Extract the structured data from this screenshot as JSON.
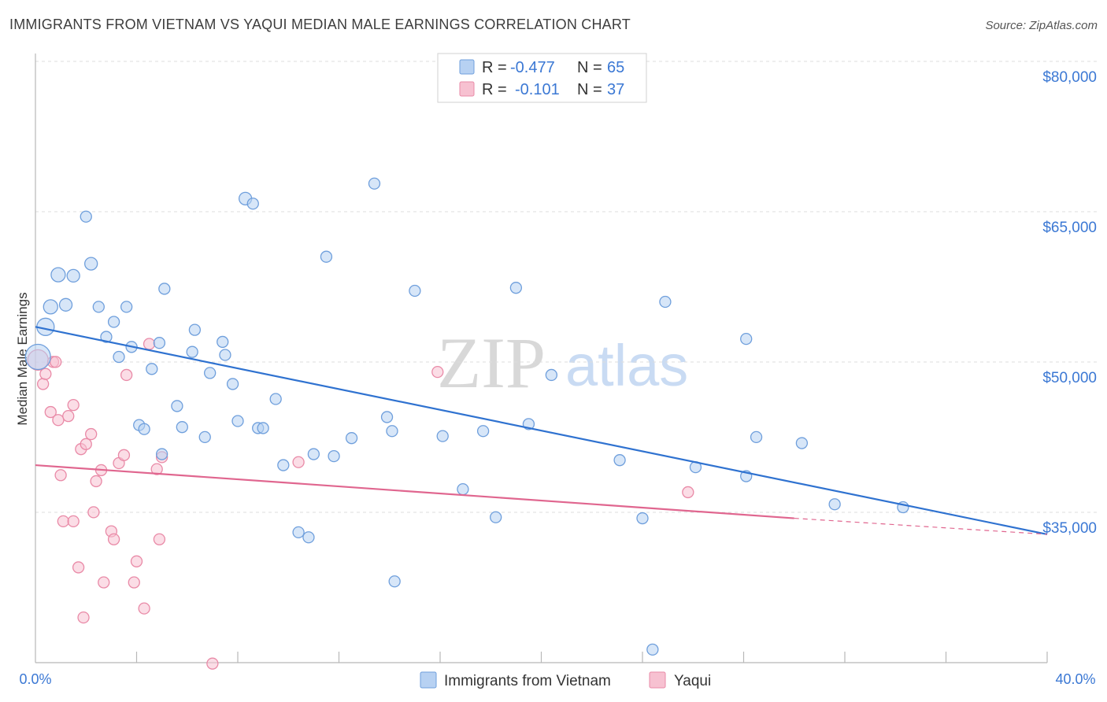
{
  "title": "IMMIGRANTS FROM VIETNAM VS YAQUI MEDIAN MALE EARNINGS CORRELATION CHART",
  "source": "Source: ZipAtlas.com",
  "watermark": {
    "zip": "ZIP",
    "atlas": "atlas"
  },
  "colors": {
    "blue_fill": "#b7d1f2",
    "blue_stroke": "#6f9fdc",
    "blue_line": "#2f72d0",
    "pink_fill": "#f7c1d1",
    "pink_stroke": "#e98aa7",
    "pink_line": "#e0668f",
    "axis_text": "#3b78d4",
    "grid": "#dddddd"
  },
  "legend": {
    "r_label": "R =",
    "n_label": "N =",
    "series1": {
      "r": "-0.477",
      "n": "65"
    },
    "series2": {
      "r": "-0.101",
      "n": "37"
    }
  },
  "chart_data": {
    "type": "scatter",
    "title": "IMMIGRANTS FROM VIETNAM VS YAQUI MEDIAN MALE EARNINGS CORRELATION CHART",
    "xlabel": "",
    "ylabel": "Median Male Earnings",
    "xlim": [
      0,
      40
    ],
    "ylim": [
      20000,
      83000
    ],
    "x_tick_labels": [
      "0.0%",
      "40.0%"
    ],
    "y_ticks": [
      35000,
      50000,
      65000,
      80000
    ],
    "y_tick_labels": [
      "$35,000",
      "$50,000",
      "$65,000",
      "$80,000"
    ],
    "legend_position": "top-center",
    "series": [
      {
        "name": "Immigrants from Vietnam",
        "color": "blue",
        "r": -0.477,
        "n": 65,
        "trend": {
          "x": [
            0,
            40
          ],
          "y": [
            55000,
            34300
          ]
        },
        "points": [
          [
            0.1,
            52000,
            16
          ],
          [
            0.4,
            55000,
            11
          ],
          [
            0.6,
            57000,
            9
          ],
          [
            0.9,
            60200,
            9
          ],
          [
            1.2,
            57200,
            8
          ],
          [
            1.5,
            60100,
            8
          ],
          [
            2.0,
            66000,
            7
          ],
          [
            2.2,
            61300,
            8
          ],
          [
            2.5,
            57000,
            7
          ],
          [
            2.8,
            54000,
            7
          ],
          [
            3.1,
            55500,
            7
          ],
          [
            3.3,
            52000,
            7
          ],
          [
            3.6,
            57000,
            7
          ],
          [
            3.8,
            53000,
            7
          ],
          [
            4.1,
            45200,
            7
          ],
          [
            4.3,
            44800,
            7
          ],
          [
            4.6,
            50800,
            7
          ],
          [
            4.9,
            53400,
            7
          ],
          [
            5.0,
            42300,
            7
          ],
          [
            5.6,
            47100,
            7
          ],
          [
            5.1,
            58800,
            7
          ],
          [
            5.8,
            45000,
            7
          ],
          [
            6.2,
            52500,
            7
          ],
          [
            6.3,
            54700,
            7
          ],
          [
            6.7,
            44000,
            7
          ],
          [
            6.9,
            50400,
            7
          ],
          [
            7.4,
            53500,
            7
          ],
          [
            7.5,
            52200,
            7
          ],
          [
            7.8,
            49300,
            7
          ],
          [
            8.0,
            45600,
            7
          ],
          [
            8.3,
            67800,
            8
          ],
          [
            8.6,
            67300,
            7
          ],
          [
            8.8,
            44900,
            7
          ],
          [
            9.0,
            44900,
            7
          ],
          [
            9.5,
            47800,
            7
          ],
          [
            9.8,
            41200,
            7
          ],
          [
            10.4,
            34500,
            7
          ],
          [
            10.8,
            34000,
            7
          ],
          [
            11.0,
            42300,
            7
          ],
          [
            11.5,
            62000,
            7
          ],
          [
            11.8,
            42100,
            7
          ],
          [
            12.5,
            43900,
            7
          ],
          [
            13.4,
            69300,
            7
          ],
          [
            13.9,
            46000,
            7
          ],
          [
            14.1,
            44600,
            7
          ],
          [
            14.2,
            29600,
            7
          ],
          [
            15.0,
            58600,
            7
          ],
          [
            16.1,
            44100,
            7
          ],
          [
            16.9,
            38800,
            7
          ],
          [
            17.7,
            44600,
            7
          ],
          [
            18.2,
            36000,
            7
          ],
          [
            19.0,
            58900,
            7
          ],
          [
            19.5,
            45300,
            7
          ],
          [
            20.4,
            50200,
            7
          ],
          [
            23.1,
            41700,
            7
          ],
          [
            24.0,
            35900,
            7
          ],
          [
            24.4,
            22800,
            7
          ],
          [
            24.9,
            57500,
            7
          ],
          [
            26.1,
            41000,
            7
          ],
          [
            28.1,
            53800,
            7
          ],
          [
            28.1,
            40100,
            7
          ],
          [
            28.5,
            44000,
            7
          ],
          [
            30.3,
            43400,
            7
          ],
          [
            31.6,
            37300,
            7
          ],
          [
            34.3,
            37000,
            7
          ]
        ]
      },
      {
        "name": "Yaqui",
        "color": "pink",
        "r": -0.101,
        "n": 37,
        "trend": {
          "x": [
            0,
            30
          ],
          "y": [
            41200,
            35900
          ],
          "dashed_to": [
            40,
            34300
          ]
        },
        "points": [
          [
            0.1,
            51700,
            13
          ],
          [
            0.3,
            49300,
            7
          ],
          [
            0.4,
            50300,
            7
          ],
          [
            0.6,
            46500,
            7
          ],
          [
            0.7,
            51500,
            7
          ],
          [
            0.8,
            51500,
            7
          ],
          [
            0.9,
            45700,
            7
          ],
          [
            1.0,
            40200,
            7
          ],
          [
            1.1,
            35600,
            7
          ],
          [
            1.3,
            46100,
            7
          ],
          [
            1.5,
            35600,
            7
          ],
          [
            1.5,
            47200,
            7
          ],
          [
            1.7,
            31000,
            7
          ],
          [
            1.8,
            42800,
            7
          ],
          [
            1.9,
            26000,
            7
          ],
          [
            2.0,
            43300,
            7
          ],
          [
            2.2,
            44300,
            7
          ],
          [
            2.3,
            36500,
            7
          ],
          [
            2.4,
            39600,
            7
          ],
          [
            2.6,
            40700,
            7
          ],
          [
            2.7,
            29500,
            7
          ],
          [
            3.0,
            34600,
            7
          ],
          [
            3.1,
            33800,
            7
          ],
          [
            3.3,
            41400,
            7
          ],
          [
            3.5,
            42200,
            7
          ],
          [
            3.6,
            50200,
            7
          ],
          [
            3.9,
            29500,
            7
          ],
          [
            4.0,
            31600,
            7
          ],
          [
            4.3,
            26900,
            7
          ],
          [
            4.5,
            53300,
            7
          ],
          [
            4.8,
            40800,
            7
          ],
          [
            4.9,
            33800,
            7
          ],
          [
            5.0,
            42000,
            7
          ],
          [
            7.0,
            21400,
            7
          ],
          [
            10.4,
            41500,
            7
          ],
          [
            15.9,
            50500,
            7
          ],
          [
            25.8,
            38500,
            7
          ]
        ]
      }
    ]
  },
  "bottom_legend": {
    "series1_label": "Immigrants from Vietnam",
    "series2_label": "Yaqui"
  }
}
